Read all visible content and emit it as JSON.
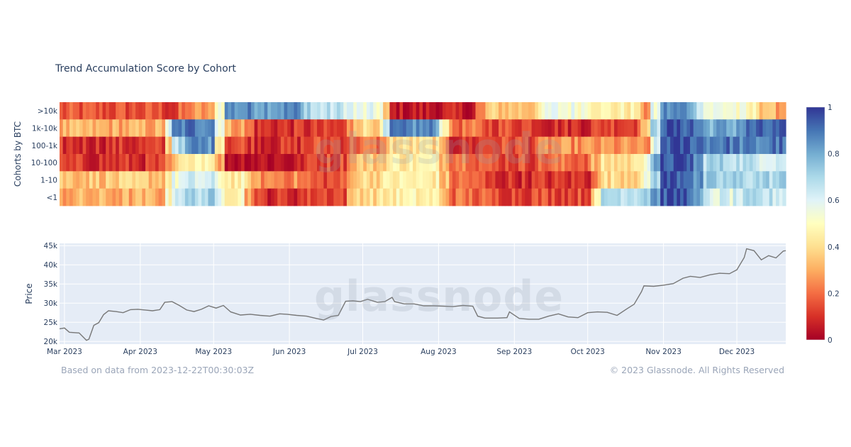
{
  "title": "Trend Accumulation Score by Cohort",
  "watermark": "glassnode",
  "footer": {
    "based_on": "Based on data from 2023-12-22T00:30:03Z",
    "copyright": "© 2023 Glassnode. All Rights Reserved"
  },
  "colors": {
    "scale": [
      "#a50026",
      "#d73027",
      "#f46d43",
      "#fdae61",
      "#fee090",
      "#ffffbf",
      "#e0f3f8",
      "#abd9e9",
      "#74add1",
      "#4575b4",
      "#313695"
    ],
    "plot_bg": "#e5ecf6",
    "price_line": "#777777"
  },
  "chart_data": [
    {
      "type": "heatmap",
      "ylabel": "Cohorts by BTC",
      "cohorts": [
        ">10k",
        "1k-10k",
        "100-1k",
        "10-100",
        "1-10",
        "<1"
      ],
      "colorbar": {
        "min": 0,
        "max": 1,
        "ticks": [
          "0",
          "0.2",
          "0.4",
          "0.6",
          "0.8",
          "1"
        ]
      },
      "segments": [
        {
          "from": 0,
          "to": 0.15,
          "scores": [
            0.15,
            0.3,
            0.1,
            0.1,
            0.35,
            0.3
          ]
        },
        {
          "from": 0.15,
          "to": 0.17,
          "scores": [
            0.1,
            0.85,
            0.65,
            0.3,
            0.55,
            0.65
          ]
        },
        {
          "from": 0.17,
          "to": 0.22,
          "scores": [
            0.25,
            0.9,
            0.85,
            0.5,
            0.6,
            0.7
          ]
        },
        {
          "from": 0.22,
          "to": 0.26,
          "scores": [
            0.85,
            0.3,
            0.15,
            0.05,
            0.45,
            0.5
          ]
        },
        {
          "from": 0.26,
          "to": 0.34,
          "scores": [
            0.85,
            0.1,
            0.1,
            0.05,
            0.25,
            0.1
          ]
        },
        {
          "from": 0.34,
          "to": 0.4,
          "scores": [
            0.65,
            0.1,
            0.15,
            0.15,
            0.15,
            0.15
          ]
        },
        {
          "from": 0.4,
          "to": 0.45,
          "scores": [
            0.55,
            0.4,
            0.2,
            0.35,
            0.4,
            0.4
          ]
        },
        {
          "from": 0.45,
          "to": 0.53,
          "scores": [
            0.05,
            0.85,
            0.4,
            0.45,
            0.45,
            0.45
          ]
        },
        {
          "from": 0.53,
          "to": 0.58,
          "scores": [
            0.05,
            0.2,
            0.1,
            0.25,
            0.2,
            0.2
          ]
        },
        {
          "from": 0.58,
          "to": 0.66,
          "scores": [
            0.35,
            0.15,
            0.15,
            0.15,
            0.1,
            0.15
          ]
        },
        {
          "from": 0.66,
          "to": 0.74,
          "scores": [
            0.55,
            0.1,
            0.25,
            0.2,
            0.1,
            0.15
          ]
        },
        {
          "from": 0.74,
          "to": 0.8,
          "scores": [
            0.45,
            0.15,
            0.25,
            0.4,
            0.4,
            0.7
          ]
        },
        {
          "from": 0.8,
          "to": 0.82,
          "scores": [
            0.25,
            0.4,
            0.2,
            0.6,
            0.5,
            0.75
          ]
        },
        {
          "from": 0.82,
          "to": 0.88,
          "scores": [
            0.85,
            0.95,
            0.95,
            0.95,
            0.95,
            0.95
          ]
        },
        {
          "from": 0.88,
          "to": 0.94,
          "scores": [
            0.55,
            0.8,
            0.9,
            0.7,
            0.7,
            0.6
          ]
        },
        {
          "from": 0.94,
          "to": 0.97,
          "scores": [
            0.45,
            0.9,
            0.85,
            0.65,
            0.7,
            0.65
          ]
        },
        {
          "from": 0.97,
          "to": 1.0,
          "scores": [
            0.3,
            0.9,
            0.9,
            0.65,
            0.7,
            0.65
          ]
        }
      ]
    },
    {
      "type": "line",
      "ylabel": "Price",
      "x_ticks": [
        "Mar 2023",
        "Apr 2023",
        "May 2023",
        "Jun 2023",
        "Jul 2023",
        "Aug 2023",
        "Sep 2023",
        "Oct 2023",
        "Nov 2023",
        "Dec 2023"
      ],
      "y_ticks": [
        "20k",
        "25k",
        "30k",
        "35k",
        "40k",
        "45k"
      ],
      "yrange": [
        19300,
        45600
      ],
      "xrange": [
        "2023-02-27",
        "2023-12-21"
      ],
      "series": [
        {
          "x": [
            "2023-02-27",
            "2023-03-01",
            "2023-03-03",
            "2023-03-07",
            "2023-03-10",
            "2023-03-11",
            "2023-03-13",
            "2023-03-15",
            "2023-03-17",
            "2023-03-19",
            "2023-03-22",
            "2023-03-25",
            "2023-03-28",
            "2023-03-31",
            "2023-04-03",
            "2023-04-06",
            "2023-04-09",
            "2023-04-11",
            "2023-04-14",
            "2023-04-17",
            "2023-04-20",
            "2023-04-23",
            "2023-04-26",
            "2023-04-29",
            "2023-05-02",
            "2023-05-05",
            "2023-05-08",
            "2023-05-12",
            "2023-05-16",
            "2023-05-20",
            "2023-05-24",
            "2023-05-28",
            "2023-05-31",
            "2023-06-04",
            "2023-06-08",
            "2023-06-12",
            "2023-06-15",
            "2023-06-18",
            "2023-06-21",
            "2023-06-24",
            "2023-06-27",
            "2023-06-30",
            "2023-07-03",
            "2023-07-07",
            "2023-07-10",
            "2023-07-13",
            "2023-07-14",
            "2023-07-18",
            "2023-07-22",
            "2023-07-26",
            "2023-07-30",
            "2023-08-03",
            "2023-08-07",
            "2023-08-11",
            "2023-08-15",
            "2023-08-17",
            "2023-08-20",
            "2023-08-25",
            "2023-08-29",
            "2023-08-30",
            "2023-09-03",
            "2023-09-07",
            "2023-09-11",
            "2023-09-15",
            "2023-09-19",
            "2023-09-23",
            "2023-09-27",
            "2023-10-01",
            "2023-10-05",
            "2023-10-09",
            "2023-10-13",
            "2023-10-17",
            "2023-10-20",
            "2023-10-23",
            "2023-10-24",
            "2023-10-28",
            "2023-11-01",
            "2023-11-05",
            "2023-11-09",
            "2023-11-12",
            "2023-11-16",
            "2023-11-20",
            "2023-11-24",
            "2023-11-28",
            "2023-12-01",
            "2023-12-04",
            "2023-12-05",
            "2023-12-08",
            "2023-12-11",
            "2023-12-14",
            "2023-12-17",
            "2023-12-20",
            "2023-12-21"
          ],
          "y": [
            23300,
            23500,
            22400,
            22200,
            20300,
            20600,
            24200,
            24900,
            27000,
            28000,
            27800,
            27500,
            28300,
            28400,
            28200,
            28000,
            28300,
            30200,
            30400,
            29400,
            28200,
            27800,
            28400,
            29300,
            28700,
            29400,
            27700,
            26900,
            27100,
            26800,
            26600,
            27200,
            27100,
            26800,
            26600,
            26000,
            25600,
            26500,
            26800,
            30500,
            30600,
            30400,
            31000,
            30200,
            30400,
            31500,
            30400,
            29800,
            29800,
            29300,
            29300,
            29200,
            29100,
            29400,
            29200,
            26600,
            26100,
            26100,
            26200,
            27700,
            26000,
            25800,
            25800,
            26600,
            27200,
            26400,
            26200,
            27500,
            27700,
            27600,
            26800,
            28500,
            29700,
            33000,
            34500,
            34400,
            34700,
            35100,
            36500,
            37000,
            36700,
            37400,
            37800,
            37700,
            38700,
            41900,
            44200,
            43700,
            41300,
            42400,
            41800,
            43600,
            43700
          ]
        }
      ]
    }
  ]
}
